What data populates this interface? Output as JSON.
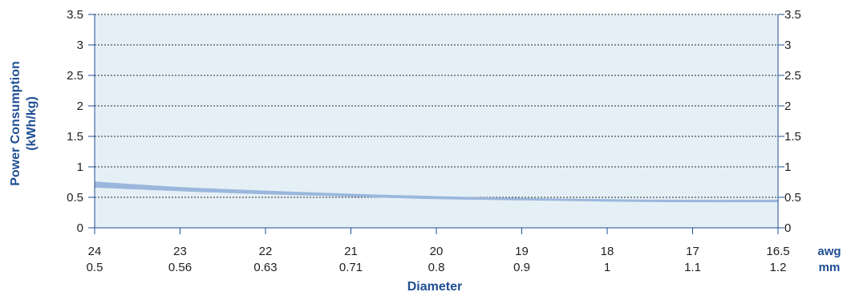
{
  "chart_data": {
    "type": "area",
    "ylabel_line1": "Power Consumption",
    "ylabel_line2": "(kWh/kg)",
    "xlabel": "Diameter",
    "ylim": [
      0,
      3.5
    ],
    "yticks": [
      "0",
      "0.5",
      "1",
      "1.5",
      "2",
      "2.5",
      "3",
      "3.5"
    ],
    "x_awg": [
      "24",
      "23",
      "22",
      "21",
      "20",
      "19",
      "18",
      "17",
      "16.5"
    ],
    "x_mm": [
      "0.5",
      "0.56",
      "0.63",
      "0.71",
      "0.8",
      "0.9",
      "1",
      "1.1",
      "1.2"
    ],
    "x_unit_awg": "awg",
    "x_unit_mm": "mm",
    "grid": "horizontal dotted",
    "band_color": "#9bb7dc",
    "plot_bg": "#e5eff6",
    "axis_color": "#1f4f93",
    "series": [
      {
        "upper": [
          0.76,
          0.67,
          0.61,
          0.56,
          0.52,
          0.49,
          0.47,
          0.46,
          0.46
        ],
        "lower": [
          0.66,
          0.6,
          0.55,
          0.51,
          0.47,
          0.45,
          0.43,
          0.42,
          0.42
        ]
      }
    ]
  }
}
